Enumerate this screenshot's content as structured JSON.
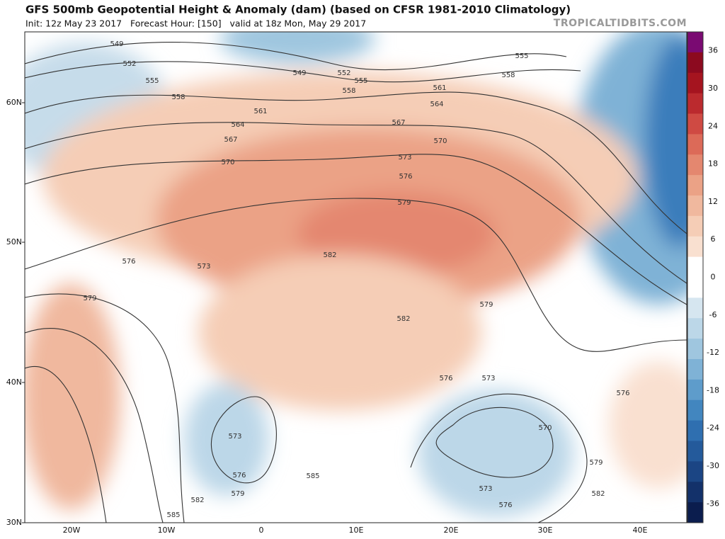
{
  "header": {
    "title": "GFS 500mb Geopotential Height & Anomaly (dam) (based on CFSR 1981-2010 Climatology)",
    "subtitle": "Init: 12z May 23 2017   Forecast Hour: [150]   valid at 18z Mon, May 29 2017",
    "site": "TROPICALTIDBITS.COM"
  },
  "map": {
    "lat_labels": [
      "60N",
      "50N",
      "40N",
      "30N"
    ],
    "lon_labels": [
      "20W",
      "10W",
      "0",
      "10E",
      "20E",
      "30E",
      "40E"
    ],
    "contour_labels": [
      "549",
      "552",
      "555",
      "558",
      "561",
      "564",
      "567",
      "570",
      "549",
      "552",
      "555",
      "558",
      "561",
      "564",
      "567",
      "570",
      "573",
      "576",
      "579",
      "555",
      "558",
      "573",
      "576",
      "579",
      "582",
      "582",
      "579",
      "576",
      "573",
      "570",
      "573",
      "576",
      "573",
      "576",
      "579",
      "582",
      "585",
      "585",
      "576",
      "579",
      "582"
    ]
  },
  "colorbar": {
    "ticks": [
      "36",
      "30",
      "24",
      "18",
      "12",
      "6",
      "0",
      "-6",
      "-12",
      "-18",
      "-24",
      "-30",
      "-36"
    ],
    "colors": [
      "#7a0a72",
      "#8c0a1f",
      "#a5141f",
      "#bb2a2e",
      "#cf4a43",
      "#dc6a58",
      "#e4876f",
      "#eba286",
      "#f0b89e",
      "#f5cdb6",
      "#f9e0d0",
      "#ffffff",
      "#ffffff",
      "#d6e6f0",
      "#bcd7e8",
      "#9fc6df",
      "#7fb2d6",
      "#5e9ccb",
      "#4286bf",
      "#2f6fb0",
      "#245a9b",
      "#1b4584",
      "#13316a",
      "#0b1d4e"
    ]
  }
}
